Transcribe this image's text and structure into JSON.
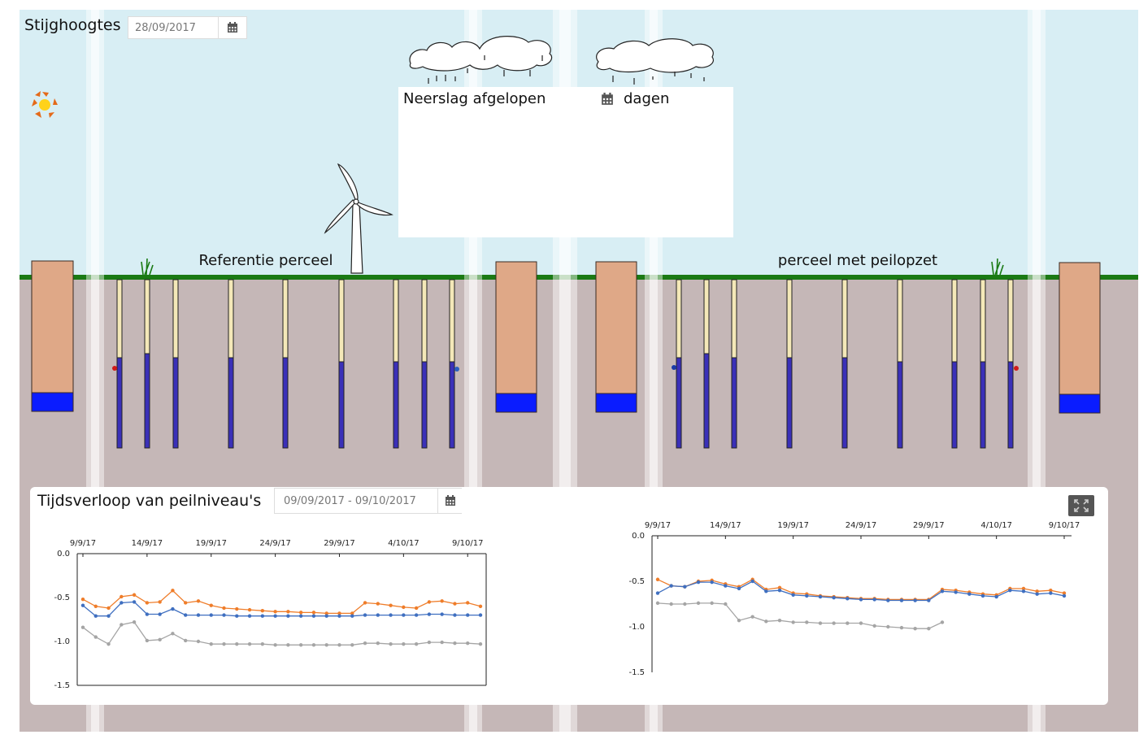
{
  "header": {
    "title": "Stijghoogtes",
    "date_value": "28/09/2017"
  },
  "rain": {
    "label_before": "Neerslag afgelopen",
    "label_after": "dagen",
    "days_value": ""
  },
  "fields": {
    "left_title": "Referentie perceel",
    "right_title": "perceel met peilopzet"
  },
  "timeseries": {
    "title": "Tijdsverloop van peilniveau's",
    "range_value": "09/09/2017 - 09/10/2017"
  },
  "colors": {
    "sky": "#d8eef4",
    "grass": "#1a7a14",
    "soil": "#c5b7b7",
    "tube_filter": "#3a30b8",
    "tube_empty": "#f4e8b8",
    "well_body": "#dfa887",
    "well_water": "#0a1cff",
    "series_orange": "#ef7d2a",
    "series_blue": "#3f6fc0",
    "series_gray": "#a5a5a5"
  },
  "icons": [
    "calendar-icon",
    "sun-loading-icon",
    "wind-turbine-icon",
    "rain-cloud-icon",
    "grass-icon",
    "expand-icon"
  ],
  "chart_data": [
    {
      "type": "line",
      "x": [
        "9/9/17",
        "10/9/17",
        "11/9/17",
        "12/9/17",
        "13/9/17",
        "14/9/17",
        "15/9/17",
        "16/9/17",
        "17/9/17",
        "18/9/17",
        "19/9/17",
        "20/9/17",
        "21/9/17",
        "22/9/17",
        "23/9/17",
        "24/9/17",
        "25/9/17",
        "26/9/17",
        "27/9/17",
        "28/9/17",
        "29/9/17",
        "30/9/17",
        "1/10/17",
        "2/10/17",
        "3/10/17",
        "4/10/17",
        "5/10/17",
        "6/10/17",
        "7/10/17",
        "8/10/17",
        "9/10/17",
        "10/10/17"
      ],
      "xticks": [
        "9/9/17",
        "14/9/17",
        "19/9/17",
        "24/9/17",
        "29/9/17",
        "4/10/17",
        "9/10/17"
      ],
      "yticks": [
        "0.0",
        "-0.5",
        "-1.0",
        "-1.5"
      ],
      "ylim": [
        -1.5,
        0
      ],
      "series": [
        {
          "color": "#ef7d2a",
          "values": [
            -0.52,
            -0.6,
            -0.62,
            -0.49,
            -0.47,
            -0.56,
            -0.55,
            -0.42,
            -0.56,
            -0.54,
            -0.59,
            -0.62,
            -0.63,
            -0.64,
            -0.65,
            -0.66,
            -0.66,
            -0.67,
            -0.67,
            -0.68,
            -0.68,
            -0.68,
            -0.56,
            -0.57,
            -0.59,
            -0.61,
            -0.62,
            -0.55,
            -0.54,
            -0.57,
            -0.56,
            -0.6
          ]
        },
        {
          "color": "#3f6fc0",
          "values": [
            -0.59,
            -0.71,
            -0.71,
            -0.56,
            -0.55,
            -0.69,
            -0.69,
            -0.63,
            -0.7,
            -0.7,
            -0.7,
            -0.7,
            -0.71,
            -0.71,
            -0.71,
            -0.71,
            -0.71,
            -0.71,
            -0.71,
            -0.71,
            -0.71,
            -0.71,
            -0.7,
            -0.7,
            -0.7,
            -0.7,
            -0.7,
            -0.69,
            -0.69,
            -0.7,
            -0.7,
            -0.7
          ]
        },
        {
          "color": "#a5a5a5",
          "values": [
            -0.84,
            -0.95,
            -1.03,
            -0.81,
            -0.78,
            -0.99,
            -0.98,
            -0.91,
            -0.99,
            -1.0,
            -1.03,
            -1.03,
            -1.03,
            -1.03,
            -1.03,
            -1.04,
            -1.04,
            -1.04,
            -1.04,
            -1.04,
            -1.04,
            -1.04,
            -1.02,
            -1.02,
            -1.03,
            -1.03,
            -1.03,
            -1.01,
            -1.01,
            -1.02,
            -1.02,
            -1.03
          ]
        }
      ]
    },
    {
      "type": "line",
      "x": [
        "9/9/17",
        "10/9/17",
        "11/9/17",
        "12/9/17",
        "13/9/17",
        "14/9/17",
        "15/9/17",
        "16/9/17",
        "17/9/17",
        "18/9/17",
        "19/9/17",
        "20/9/17",
        "21/9/17",
        "22/9/17",
        "23/9/17",
        "24/9/17",
        "25/9/17",
        "26/9/17",
        "27/9/17",
        "28/9/17",
        "29/9/17",
        "30/9/17",
        "1/10/17",
        "2/10/17",
        "3/10/17",
        "4/10/17",
        "5/10/17",
        "6/10/17",
        "7/10/17",
        "8/10/17",
        "9/10/17"
      ],
      "xticks": [
        "9/9/17",
        "14/9/17",
        "19/9/17",
        "24/9/17",
        "29/9/17",
        "4/10/17",
        "9/10/17"
      ],
      "yticks": [
        "0.0",
        "-0.5",
        "-1.0",
        "-1.5"
      ],
      "ylim": [
        -1.5,
        0
      ],
      "series": [
        {
          "color": "#ef7d2a",
          "values": [
            -0.48,
            -0.55,
            -0.56,
            -0.5,
            -0.49,
            -0.53,
            -0.56,
            -0.48,
            -0.59,
            -0.57,
            -0.63,
            -0.64,
            -0.66,
            -0.67,
            -0.68,
            -0.69,
            -0.69,
            -0.7,
            -0.7,
            -0.7,
            -0.7,
            -0.59,
            -0.6,
            -0.62,
            -0.64,
            -0.65,
            -0.58,
            -0.58,
            -0.61,
            -0.6,
            -0.63
          ]
        },
        {
          "color": "#3f6fc0",
          "values": [
            -0.63,
            -0.55,
            -0.56,
            -0.51,
            -0.51,
            -0.55,
            -0.58,
            -0.5,
            -0.61,
            -0.6,
            -0.65,
            -0.66,
            -0.67,
            -0.68,
            -0.69,
            -0.7,
            -0.7,
            -0.71,
            -0.71,
            -0.71,
            -0.71,
            -0.61,
            -0.62,
            -0.64,
            -0.66,
            -0.67,
            -0.6,
            -0.61,
            -0.64,
            -0.63,
            -0.66
          ]
        },
        {
          "color": "#a5a5a5",
          "values": [
            -0.74,
            -0.75,
            -0.75,
            -0.74,
            -0.74,
            -0.75,
            -0.93,
            -0.89,
            -0.94,
            -0.93,
            -0.95,
            -0.95,
            -0.96,
            -0.96,
            -0.96,
            -0.96,
            -0.99,
            -1.0,
            -1.01,
            -1.02,
            -1.02,
            -0.95,
            null,
            null,
            null,
            null,
            null,
            null,
            null,
            null,
            null
          ]
        }
      ]
    }
  ]
}
